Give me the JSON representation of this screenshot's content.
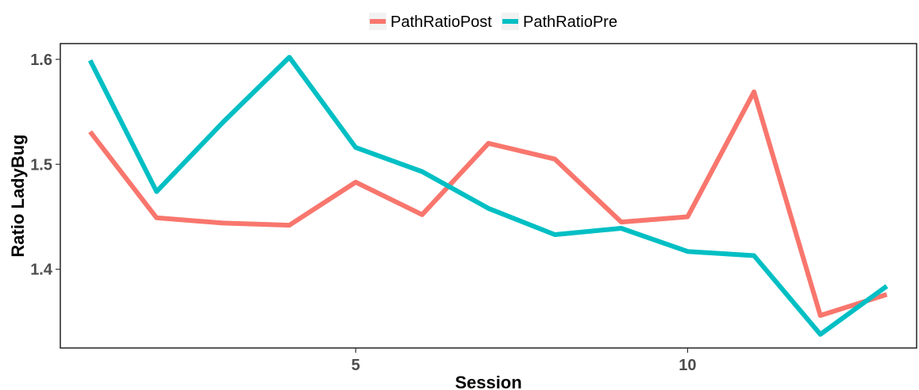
{
  "chart_data": {
    "type": "line",
    "title": "",
    "xlabel": "Session",
    "ylabel": "Ratio LadyBug",
    "xlim": [
      0.55,
      13.45
    ],
    "ylim": [
      1.325,
      1.615
    ],
    "x_ticks": [
      5,
      10
    ],
    "y_ticks": [
      1.4,
      1.5,
      1.6
    ],
    "grid": false,
    "legend_position": "top",
    "x": [
      1,
      2,
      3,
      4,
      5,
      6,
      7,
      8,
      9,
      10,
      11,
      12,
      13
    ],
    "series": [
      {
        "name": "PathRatioPost",
        "color": "#F8766D",
        "values": [
          1.531,
          1.449,
          1.444,
          1.442,
          1.483,
          1.452,
          1.52,
          1.505,
          1.445,
          1.45,
          1.569,
          1.356,
          1.376
        ]
      },
      {
        "name": "PathRatioPre",
        "color": "#00BFC4",
        "values": [
          1.599,
          1.474,
          1.54,
          1.602,
          1.516,
          1.493,
          1.458,
          1.433,
          1.439,
          1.417,
          1.413,
          1.338,
          1.384
        ]
      }
    ]
  }
}
